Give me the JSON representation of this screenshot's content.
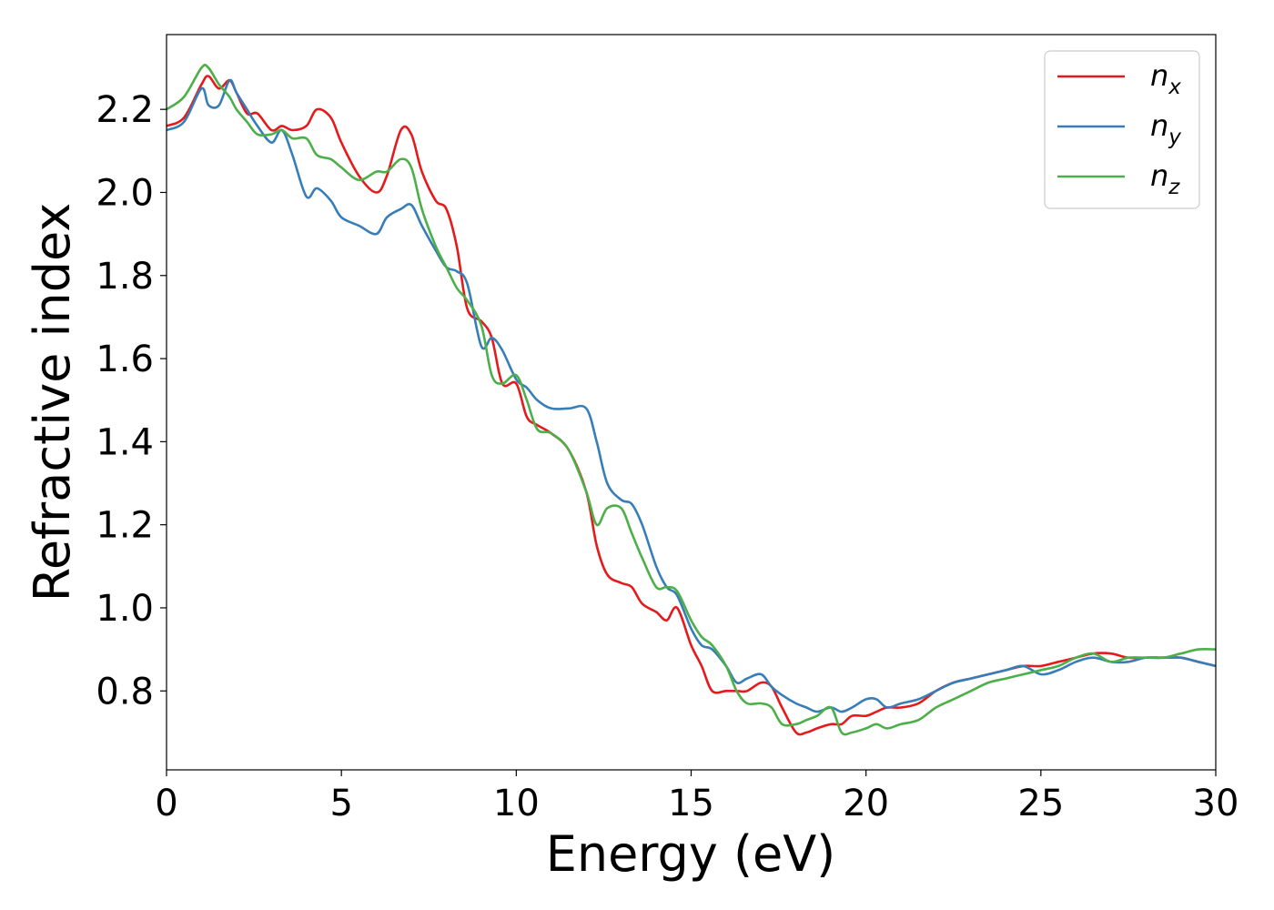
{
  "chart_data": {
    "type": "line",
    "xlabel": "Energy (eV)",
    "ylabel": "Refractive index",
    "xlim": [
      0,
      30
    ],
    "ylim": [
      0.61,
      2.38
    ],
    "xticks": [
      0,
      5,
      10,
      15,
      20,
      25,
      30
    ],
    "yticks": [
      0.8,
      1.0,
      1.2,
      1.4,
      1.6,
      1.8,
      2.0,
      2.2
    ],
    "xtick_labels": [
      "0",
      "5",
      "10",
      "15",
      "20",
      "25",
      "30"
    ],
    "ytick_labels": [
      "0.8",
      "1.0",
      "1.2",
      "1.4",
      "1.6",
      "1.8",
      "2.0",
      "2.2"
    ],
    "grid": false,
    "legend_position": "top-right",
    "x": [
      0,
      0.5,
      1.0,
      1.2,
      1.5,
      1.8,
      2.0,
      2.3,
      2.6,
      3.0,
      3.3,
      3.6,
      4.0,
      4.3,
      4.7,
      5.0,
      5.5,
      6.0,
      6.3,
      6.7,
      7.0,
      7.3,
      7.7,
      8.0,
      8.3,
      8.6,
      9.0,
      9.3,
      9.6,
      10.0,
      10.3,
      10.6,
      11.0,
      11.5,
      12.0,
      12.3,
      12.6,
      13.0,
      13.3,
      13.6,
      14.0,
      14.3,
      14.6,
      15.0,
      15.3,
      15.6,
      16.0,
      16.3,
      16.6,
      17.0,
      17.3,
      17.6,
      18.0,
      18.3,
      18.6,
      19.0,
      19.3,
      19.6,
      20.0,
      20.3,
      20.6,
      21.0,
      21.5,
      22.0,
      22.5,
      23.0,
      23.5,
      24.0,
      24.5,
      25.0,
      25.5,
      26.0,
      26.5,
      27.0,
      27.5,
      28.0,
      28.5,
      29.0,
      29.5,
      30.0
    ],
    "series": [
      {
        "name": "x",
        "color": "#e41a1c",
        "values": [
          2.16,
          2.18,
          2.26,
          2.28,
          2.25,
          2.27,
          2.24,
          2.19,
          2.19,
          2.15,
          2.16,
          2.15,
          2.16,
          2.2,
          2.18,
          2.12,
          2.04,
          2.0,
          2.04,
          2.15,
          2.14,
          2.05,
          1.98,
          1.96,
          1.87,
          1.72,
          1.69,
          1.65,
          1.54,
          1.54,
          1.46,
          1.44,
          1.42,
          1.38,
          1.28,
          1.15,
          1.08,
          1.06,
          1.05,
          1.01,
          0.99,
          0.97,
          1.0,
          0.91,
          0.86,
          0.8,
          0.8,
          0.8,
          0.8,
          0.82,
          0.81,
          0.76,
          0.7,
          0.7,
          0.71,
          0.72,
          0.72,
          0.74,
          0.74,
          0.75,
          0.76,
          0.76,
          0.77,
          0.8,
          0.82,
          0.83,
          0.84,
          0.85,
          0.86,
          0.86,
          0.87,
          0.88,
          0.89,
          0.89,
          0.88,
          0.88,
          0.88,
          0.88,
          0.87,
          0.86
        ]
      },
      {
        "name": "y",
        "color": "#377eb8",
        "values": [
          2.15,
          2.17,
          2.25,
          2.21,
          2.21,
          2.27,
          2.24,
          2.2,
          2.16,
          2.12,
          2.15,
          2.09,
          1.99,
          2.01,
          1.98,
          1.94,
          1.92,
          1.9,
          1.94,
          1.96,
          1.97,
          1.92,
          1.86,
          1.82,
          1.81,
          1.78,
          1.63,
          1.65,
          1.62,
          1.55,
          1.53,
          1.5,
          1.48,
          1.48,
          1.48,
          1.4,
          1.3,
          1.26,
          1.25,
          1.2,
          1.1,
          1.05,
          1.03,
          0.95,
          0.91,
          0.9,
          0.86,
          0.82,
          0.83,
          0.84,
          0.81,
          0.79,
          0.77,
          0.76,
          0.75,
          0.76,
          0.75,
          0.76,
          0.78,
          0.78,
          0.76,
          0.77,
          0.78,
          0.8,
          0.82,
          0.83,
          0.84,
          0.85,
          0.86,
          0.84,
          0.85,
          0.87,
          0.88,
          0.87,
          0.87,
          0.88,
          0.88,
          0.88,
          0.87,
          0.86
        ]
      },
      {
        "name": "z",
        "color": "#4daf4a",
        "values": [
          2.2,
          2.23,
          2.3,
          2.3,
          2.26,
          2.23,
          2.2,
          2.17,
          2.14,
          2.14,
          2.15,
          2.13,
          2.13,
          2.09,
          2.08,
          2.06,
          2.03,
          2.05,
          2.05,
          2.08,
          2.06,
          1.96,
          1.87,
          1.82,
          1.77,
          1.74,
          1.68,
          1.56,
          1.54,
          1.56,
          1.5,
          1.43,
          1.42,
          1.38,
          1.28,
          1.2,
          1.24,
          1.24,
          1.18,
          1.12,
          1.05,
          1.05,
          1.04,
          0.97,
          0.93,
          0.91,
          0.86,
          0.8,
          0.77,
          0.77,
          0.76,
          0.72,
          0.72,
          0.73,
          0.74,
          0.76,
          0.7,
          0.7,
          0.71,
          0.72,
          0.71,
          0.72,
          0.73,
          0.76,
          0.78,
          0.8,
          0.82,
          0.83,
          0.84,
          0.85,
          0.86,
          0.88,
          0.89,
          0.87,
          0.88,
          0.88,
          0.88,
          0.89,
          0.9,
          0.9
        ]
      }
    ]
  }
}
